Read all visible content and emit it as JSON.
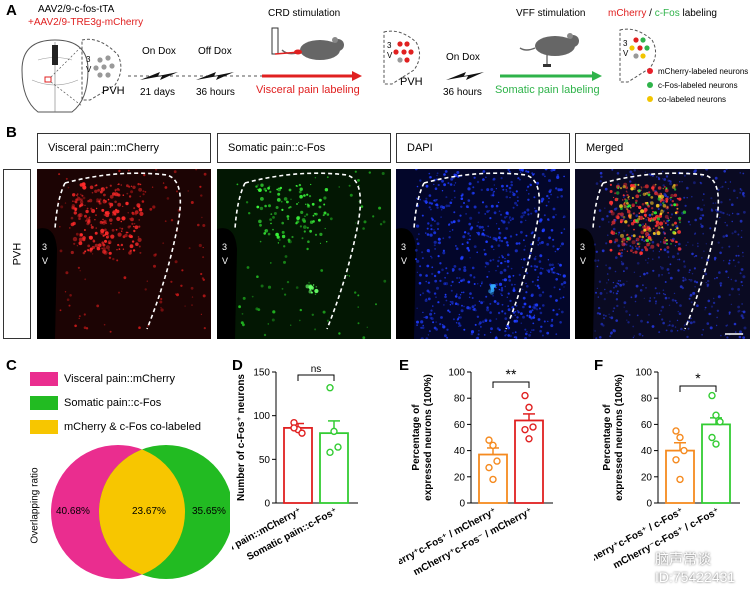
{
  "panelA": {
    "label": "A",
    "virus1": "AAV2/9-c-fos-tTA",
    "virus2_prefix": "+",
    "virus2": "AAV2/9-TRE3g-mCherry",
    "brain_3v": "3\nV",
    "pvh": "PVH",
    "on_dox": "On Dox",
    "off_dox": "Off Dox",
    "days21": "21 days",
    "hours36a": "36 hours",
    "crd": "CRD stimulation",
    "visceral_labeling": "Visceral pain labeling",
    "pvh2": "PVH",
    "on_dox2": "On Dox",
    "hours36b": "36 hours",
    "vff": "VFF stimulation",
    "somatic_labeling": "Somatic pain labeling",
    "labeling_title_red": "mCherry",
    "labeling_title_sep": " / ",
    "labeling_title_green": "c-Fos",
    "labeling_title_rest": " labeling",
    "legend": [
      {
        "text": "mCherry-labeled neurons",
        "color": "#e8202a"
      },
      {
        "text": "c-Fos-labeled neurons",
        "color": "#2fb34a"
      },
      {
        "text": "co-labeled neurons",
        "color": "#f2c500"
      }
    ]
  },
  "panelB": {
    "label": "B",
    "row_label": "PVH",
    "headers": [
      "Visceral pain::mCherry",
      "Somatic pain::c-Fos",
      "DAPI",
      "Merged"
    ],
    "v3": "3",
    "v3b": "V"
  },
  "panelC": {
    "label": "C",
    "legend": [
      {
        "text": "Visceral pain::mCherry",
        "color": "#ea2d8f"
      },
      {
        "text": "Somatic pain::c-Fos",
        "color": "#22bb22"
      },
      {
        "text": "mCherry & c-Fos co-labeled",
        "color": "#f7c600"
      }
    ],
    "ylabel": "Overlapping ratio",
    "left_pct": "40.68%",
    "mid_pct": "23.67%",
    "right_pct": "35.65%"
  },
  "chart_data": [
    {
      "panel": "D",
      "type": "bar",
      "ylabel": "Number of c-Fos⁺ neurons",
      "ylim": [
        0,
        150
      ],
      "yticks": [
        0,
        50,
        100,
        150
      ],
      "categories": [
        "Visceral pain::mCherry⁺",
        "Somatic pain::c-Fos⁺"
      ],
      "values": [
        86,
        80
      ],
      "errors": [
        5,
        14
      ],
      "points": [
        [
          92,
          84,
          80,
          86
        ],
        [
          132,
          82,
          64,
          58
        ]
      ],
      "colors": [
        "#e02020",
        "#33cc33"
      ],
      "significance": "ns"
    },
    {
      "panel": "E",
      "type": "bar",
      "ylabel": "Percentage of expressed neurons (100%)",
      "ylim": [
        0,
        100
      ],
      "yticks": [
        0,
        20,
        40,
        60,
        80,
        100
      ],
      "categories": [
        "mCherry⁺c-Fos⁺ / mCherry⁺",
        "mCherry⁺c-Fos⁻ / mCherry⁺"
      ],
      "values": [
        37,
        63
      ],
      "errors": [
        5,
        5
      ],
      "points": [
        [
          48,
          44,
          32,
          27,
          18
        ],
        [
          82,
          73,
          58,
          56,
          49
        ]
      ],
      "colors": [
        "#f58a1f",
        "#e02020"
      ],
      "significance": "**"
    },
    {
      "panel": "F",
      "type": "bar",
      "ylabel": "Percentage of expressed neurons (100%)",
      "ylim": [
        0,
        100
      ],
      "yticks": [
        0,
        20,
        40,
        60,
        80,
        100
      ],
      "categories": [
        "mCherry⁺c-Fos⁺ / c-Fos⁺",
        "mCherry⁻c-Fos⁺ / c-Fos⁺"
      ],
      "values": [
        40,
        60
      ],
      "errors": [
        6,
        5
      ],
      "points": [
        [
          55,
          50,
          40,
          33,
          18
        ],
        [
          82,
          67,
          62,
          50,
          45
        ]
      ],
      "colors": [
        "#f58a1f",
        "#33cc33"
      ],
      "significance": "*"
    }
  ],
  "panel_labels": {
    "D": "D",
    "E": "E",
    "F": "F"
  },
  "watermark": {
    "line1": "脑声常谈",
    "line2": "ID:75422431"
  }
}
